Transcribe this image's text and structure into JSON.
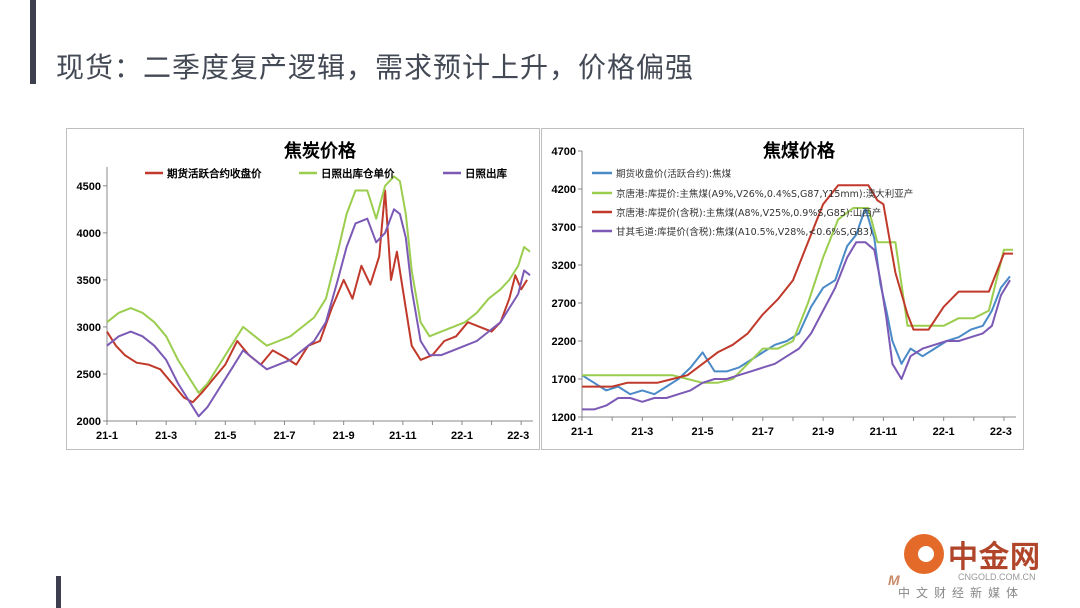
{
  "slide": {
    "title": "现货：二季度复产逻辑，需求预计上升，价格偏强"
  },
  "watermark": {
    "name": "中金网",
    "url": "CNGOLD.COM.CN",
    "sub": "中文财经新媒体",
    "m": "M"
  },
  "colors": {
    "accent": "#3d3f4f",
    "red": "#c0392b",
    "green": "#9bcd4f",
    "purple": "#7b59b5",
    "blue": "#4a8ac7"
  },
  "chart_data": [
    {
      "type": "line",
      "title": "焦炭价格",
      "ylim": [
        2000,
        4700
      ],
      "yticks": [
        2000,
        2500,
        3000,
        3500,
        4000,
        4500
      ],
      "x_tick_labels": [
        "21-1",
        "21-3",
        "21-5",
        "21-7",
        "21-9",
        "21-11",
        "22-1",
        "22-3"
      ],
      "x_ticks": [
        0,
        2,
        4,
        6,
        8,
        10,
        12,
        13.9
      ],
      "xlim": [
        0,
        14.4
      ],
      "legend": "top",
      "series": [
        {
          "name": "期货活跃合约收盘价",
          "color": "#c0392b",
          "x": [
            0,
            0.3,
            0.6,
            1.0,
            1.4,
            1.8,
            2.2,
            2.6,
            2.9,
            3.2,
            3.6,
            4.0,
            4.4,
            4.8,
            5.2,
            5.6,
            6.0,
            6.4,
            6.8,
            7.2,
            7.6,
            8.0,
            8.3,
            8.6,
            8.9,
            9.2,
            9.4,
            9.6,
            9.8,
            10.0,
            10.3,
            10.6,
            11.0,
            11.4,
            11.8,
            12.2,
            12.6,
            13.0,
            13.3,
            13.6,
            13.8,
            14.0,
            14.2
          ],
          "values": [
            2950,
            2800,
            2700,
            2620,
            2600,
            2550,
            2400,
            2250,
            2200,
            2300,
            2450,
            2600,
            2850,
            2700,
            2600,
            2750,
            2680,
            2600,
            2800,
            2850,
            3200,
            3500,
            3300,
            3650,
            3450,
            3750,
            4450,
            3500,
            3800,
            3400,
            2800,
            2650,
            2700,
            2850,
            2900,
            3050,
            3000,
            2950,
            3050,
            3300,
            3550,
            3400,
            3500
          ]
        },
        {
          "name": "日照出库仓单价",
          "color": "#9bcd4f",
          "x": [
            0,
            0.4,
            0.8,
            1.2,
            1.6,
            2.0,
            2.4,
            2.8,
            3.1,
            3.4,
            3.8,
            4.2,
            4.6,
            5.0,
            5.4,
            5.8,
            6.2,
            6.6,
            7.0,
            7.4,
            7.8,
            8.1,
            8.4,
            8.8,
            9.1,
            9.4,
            9.7,
            9.9,
            10.1,
            10.3,
            10.6,
            10.9,
            11.3,
            11.7,
            12.1,
            12.5,
            12.9,
            13.3,
            13.6,
            13.9,
            14.1,
            14.3
          ],
          "values": [
            3050,
            3150,
            3200,
            3150,
            3050,
            2900,
            2650,
            2450,
            2300,
            2400,
            2600,
            2800,
            3000,
            2900,
            2800,
            2850,
            2900,
            3000,
            3100,
            3300,
            3800,
            4200,
            4450,
            4450,
            4150,
            4500,
            4600,
            4550,
            4200,
            3600,
            3050,
            2900,
            2950,
            3000,
            3050,
            3150,
            3300,
            3400,
            3500,
            3650,
            3850,
            3800
          ]
        },
        {
          "name": "日照出库",
          "color": "#7b59b5",
          "x": [
            0,
            0.4,
            0.8,
            1.2,
            1.6,
            2.0,
            2.4,
            2.8,
            3.1,
            3.4,
            3.8,
            4.2,
            4.6,
            5.0,
            5.4,
            5.8,
            6.2,
            6.6,
            7.0,
            7.4,
            7.8,
            8.1,
            8.4,
            8.8,
            9.1,
            9.4,
            9.7,
            9.9,
            10.1,
            10.3,
            10.6,
            10.9,
            11.3,
            11.7,
            12.1,
            12.5,
            12.9,
            13.3,
            13.6,
            13.9,
            14.1,
            14.3
          ],
          "values": [
            2800,
            2900,
            2950,
            2900,
            2800,
            2650,
            2400,
            2200,
            2050,
            2150,
            2350,
            2550,
            2750,
            2650,
            2550,
            2600,
            2650,
            2750,
            2850,
            3050,
            3500,
            3850,
            4100,
            4150,
            3900,
            4000,
            4250,
            4200,
            3950,
            3400,
            2850,
            2700,
            2700,
            2750,
            2800,
            2850,
            2950,
            3050,
            3200,
            3350,
            3600,
            3550
          ]
        }
      ]
    },
    {
      "type": "line",
      "title": "焦煤价格",
      "ylim": [
        1200,
        4700
      ],
      "yticks": [
        1200,
        1700,
        2200,
        2700,
        3200,
        3700,
        4200,
        4700
      ],
      "x_tick_labels": [
        "21-1",
        "21-3",
        "21-5",
        "21-7",
        "21-9",
        "21-11",
        "22-1",
        "22-3"
      ],
      "x_ticks": [
        0,
        2,
        4,
        6,
        8,
        10,
        12,
        13.9
      ],
      "xlim": [
        0,
        14.4
      ],
      "legend": "top-left",
      "series": [
        {
          "name": "期货收盘价(活跃合约):焦煤",
          "color": "#4a8ac7",
          "x": [
            0,
            0.4,
            0.8,
            1.2,
            1.6,
            2.0,
            2.4,
            2.8,
            3.2,
            3.6,
            4.0,
            4.4,
            4.8,
            5.2,
            5.6,
            6.0,
            6.4,
            6.8,
            7.2,
            7.6,
            8.0,
            8.4,
            8.8,
            9.1,
            9.4,
            9.7,
            9.9,
            10.1,
            10.3,
            10.6,
            10.9,
            11.3,
            11.7,
            12.1,
            12.5,
            12.9,
            13.3,
            13.6,
            13.9,
            14.2
          ],
          "values": [
            1750,
            1650,
            1550,
            1600,
            1500,
            1550,
            1500,
            1600,
            1700,
            1850,
            2050,
            1800,
            1800,
            1850,
            1950,
            2050,
            2150,
            2200,
            2300,
            2650,
            2900,
            3000,
            3450,
            3600,
            3950,
            3550,
            2950,
            2600,
            2200,
            1900,
            2100,
            2000,
            2100,
            2200,
            2250,
            2350,
            2400,
            2600,
            2900,
            3050
          ]
        },
        {
          "name": "京唐港:库提价:主焦煤(A9%,V26%,0.4%S,G87,Y15mm):澳大利亚产",
          "color": "#9bcd4f",
          "x": [
            0,
            0.5,
            1.0,
            1.5,
            2.0,
            2.5,
            3.0,
            3.5,
            4.0,
            4.5,
            5.0,
            5.5,
            6.0,
            6.5,
            7.0,
            7.5,
            8.0,
            8.5,
            9.0,
            9.5,
            9.8,
            10.0,
            10.4,
            10.8,
            11.0,
            11.5,
            12.0,
            12.5,
            13.0,
            13.5,
            14.0,
            14.3
          ],
          "values": [
            1750,
            1750,
            1750,
            1750,
            1750,
            1750,
            1750,
            1700,
            1650,
            1650,
            1700,
            1900,
            2100,
            2100,
            2200,
            2700,
            3300,
            3800,
            3950,
            3950,
            3500,
            3500,
            3500,
            2400,
            2400,
            2400,
            2400,
            2500,
            2500,
            2600,
            3400,
            3400
          ]
        },
        {
          "name": "京唐港:库提价(含税):主焦煤(A8%,V25%,0.9%S,G85):山西产",
          "color": "#c0392b",
          "x": [
            0,
            0.5,
            1.0,
            1.5,
            2.0,
            2.5,
            3.0,
            3.5,
            4.0,
            4.5,
            5.0,
            5.5,
            6.0,
            6.5,
            7.0,
            7.5,
            8.0,
            8.5,
            9.0,
            9.5,
            9.8,
            10.0,
            10.4,
            10.8,
            11.0,
            11.5,
            12.0,
            12.5,
            13.0,
            13.5,
            14.0,
            14.3
          ],
          "values": [
            1600,
            1600,
            1600,
            1650,
            1650,
            1650,
            1700,
            1750,
            1900,
            2050,
            2150,
            2300,
            2550,
            2750,
            3000,
            3500,
            4000,
            4250,
            4250,
            4250,
            4050,
            4000,
            3100,
            2550,
            2350,
            2350,
            2650,
            2850,
            2850,
            2850,
            3350,
            3350
          ]
        },
        {
          "name": "甘其毛道:库提价(含税):焦煤(A10.5%,V28%,<0.6%S,G83)",
          "color": "#7b59b5",
          "x": [
            0,
            0.4,
            0.8,
            1.2,
            1.6,
            2.0,
            2.4,
            2.8,
            3.2,
            3.6,
            4.0,
            4.4,
            4.8,
            5.2,
            5.6,
            6.0,
            6.4,
            6.8,
            7.2,
            7.6,
            8.0,
            8.4,
            8.8,
            9.1,
            9.4,
            9.7,
            9.9,
            10.1,
            10.3,
            10.6,
            10.9,
            11.3,
            11.7,
            12.1,
            12.5,
            12.9,
            13.3,
            13.6,
            13.9,
            14.2
          ],
          "values": [
            1300,
            1300,
            1350,
            1450,
            1450,
            1400,
            1450,
            1450,
            1500,
            1550,
            1650,
            1700,
            1700,
            1750,
            1800,
            1850,
            1900,
            2000,
            2100,
            2300,
            2600,
            2900,
            3300,
            3500,
            3500,
            3400,
            3000,
            2500,
            1900,
            1700,
            2000,
            2100,
            2150,
            2200,
            2200,
            2250,
            2300,
            2400,
            2800,
            3000
          ]
        }
      ]
    }
  ]
}
